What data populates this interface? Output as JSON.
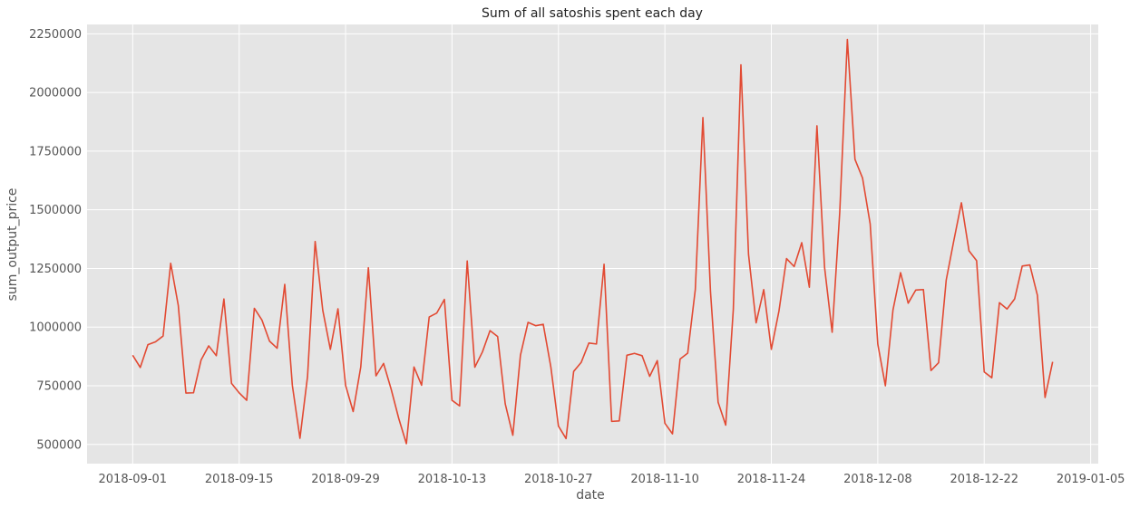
{
  "chart_data": {
    "type": "line",
    "title": "Sum of all satoshis spent each day",
    "xlabel": "date",
    "ylabel": "sum_output_price",
    "x_tick_labels": [
      "2018-09-01",
      "2018-09-15",
      "2018-09-29",
      "2018-10-13",
      "2018-10-27",
      "2018-11-10",
      "2018-11-24",
      "2018-12-08",
      "2018-12-22",
      "2019-01-05"
    ],
    "y_tick_labels": [
      "500000",
      "750000",
      "1000000",
      "1250000",
      "1500000",
      "1750000",
      "2000000",
      "2250000"
    ],
    "y_ticks": [
      500000,
      750000,
      1000000,
      1250000,
      1500000,
      1750000,
      2000000,
      2250000
    ],
    "xlim": [
      "2018-08-26",
      "2019-01-06"
    ],
    "ylim": [
      418000,
      2290000
    ],
    "grid": true,
    "colors": {
      "background": "#e5e5e5",
      "grid": "#ffffff",
      "line": "#e24a33"
    },
    "series": [
      {
        "x_start": "2018-09-01",
        "x_step_days": 1,
        "values": [
          880000,
          828000,
          925000,
          937000,
          962000,
          1272000,
          1092000,
          719000,
          720000,
          860000,
          920000,
          878000,
          1120000,
          760000,
          720000,
          688000,
          1080000,
          1030000,
          940000,
          910000,
          1182000,
          752000,
          526000,
          790000,
          1365000,
          1072000,
          905000,
          1078000,
          752000,
          640000,
          830000,
          1253000,
          792000,
          845000,
          735000,
          610000,
          503000,
          830000,
          752000,
          1043000,
          1060000,
          1118000,
          688000,
          664000,
          1282000,
          829000,
          894000,
          985000,
          960000,
          673000,
          539000,
          880000,
          1020000,
          1006000,
          1012000,
          830000,
          578000,
          525000,
          811000,
          850000,
          932000,
          928000,
          1268000,
          598000,
          600000,
          880000,
          888000,
          878000,
          790000,
          857000,
          590000,
          545000,
          864000,
          889000,
          1160000,
          1893000,
          1150000,
          680000,
          582000,
          1075000,
          2118000,
          1310000,
          1018000,
          1160000,
          905000,
          1068000,
          1292000,
          1258000,
          1360000,
          1170000,
          1858000,
          1255000,
          978000,
          1490000,
          2226000,
          1715000,
          1635000,
          1440000,
          928000,
          750000,
          1073000,
          1232000,
          1102000,
          1158000,
          1160000,
          815000,
          848000,
          1200000,
          1368000,
          1530000,
          1325000,
          1283000,
          809000,
          784000,
          1104000,
          1077000,
          1120000,
          1260000,
          1265000,
          1135000,
          700000,
          852000
        ]
      }
    ]
  }
}
